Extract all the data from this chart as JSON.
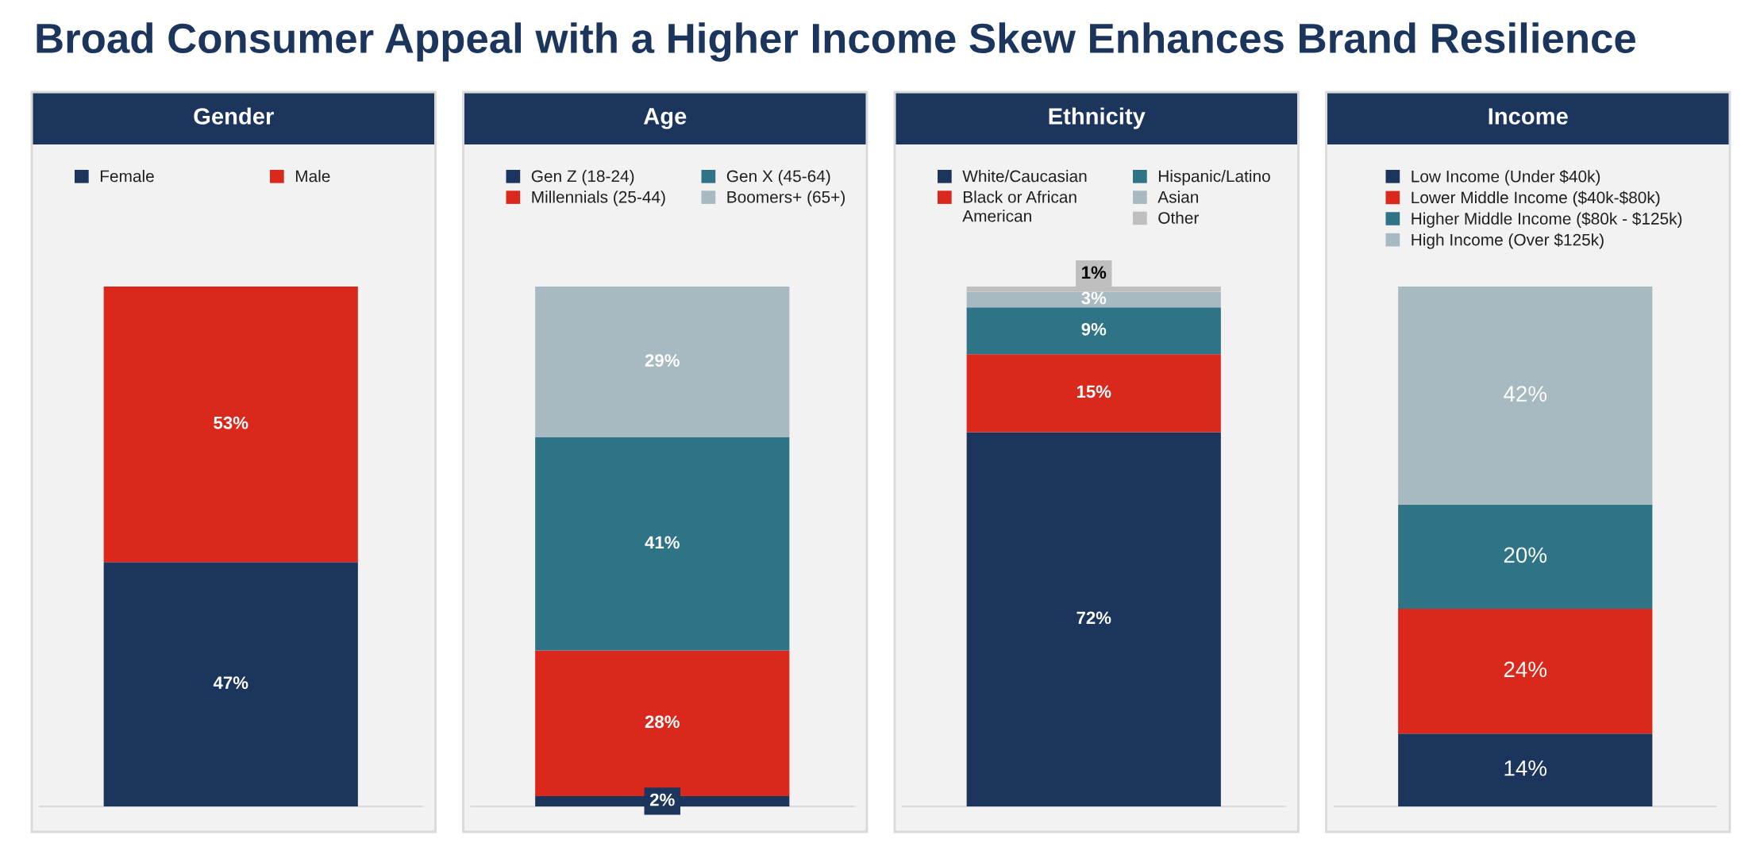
{
  "chart_data": [
    {
      "type": "bar",
      "title": "Gender",
      "annotations": [
        "Broad Consumer Appeal with a Higher Income Skew Enhances Brand Resilience"
      ],
      "categories": [
        null
      ],
      "stacked": true,
      "ylim": [
        0,
        100
      ],
      "tick_labels": false,
      "legend": "top",
      "series": [
        {
          "name": "Female",
          "color": "#1b355c",
          "values": [
            47
          ],
          "value_labels": [
            "47%"
          ]
        },
        {
          "name": "Male",
          "color": "#da291c",
          "values": [
            53
          ],
          "value_labels": [
            "53%"
          ]
        }
      ]
    },
    {
      "type": "bar",
      "title": "Age",
      "categories": [
        null
      ],
      "stacked": true,
      "ylim": [
        0,
        100
      ],
      "tick_labels": false,
      "legend": "top",
      "series": [
        {
          "name": "Gen Z (18-24)",
          "color": "#1b355c",
          "values": [
            2
          ],
          "value_labels": [
            "2%"
          ]
        },
        {
          "name": "Millennials (25-44)",
          "color": "#da291c",
          "values": [
            28
          ],
          "value_labels": [
            "28%"
          ]
        },
        {
          "name": "Gen X (45-64)",
          "color": "#2e7386",
          "values": [
            41
          ],
          "value_labels": [
            "41%"
          ]
        },
        {
          "name": "Boomers+ (65+)",
          "color": "#a7b9c1",
          "values": [
            29
          ],
          "value_labels": [
            "29%"
          ]
        }
      ]
    },
    {
      "type": "bar",
      "title": "Ethnicity",
      "categories": [
        null
      ],
      "stacked": true,
      "ylim": [
        0,
        100
      ],
      "tick_labels": false,
      "legend": "top",
      "series": [
        {
          "name": "White/Caucasian",
          "color": "#1b355c",
          "values": [
            72
          ],
          "value_labels": [
            "72%"
          ]
        },
        {
          "name": "Black or African American",
          "color": "#da291c",
          "values": [
            15
          ],
          "value_labels": [
            "15%"
          ]
        },
        {
          "name": "Hispanic/Latino",
          "color": "#2e7386",
          "values": [
            9
          ],
          "value_labels": [
            "9%"
          ]
        },
        {
          "name": "Asian",
          "color": "#a7b9c1",
          "values": [
            3
          ],
          "value_labels": [
            "3%"
          ]
        },
        {
          "name": "Other",
          "color": "#bfbfbf",
          "values": [
            1
          ],
          "value_labels": [
            "1%"
          ]
        }
      ]
    },
    {
      "type": "bar",
      "title": "Income",
      "categories": [
        null
      ],
      "stacked": true,
      "ylim": [
        0,
        100
      ],
      "tick_labels": false,
      "legend": "top",
      "series": [
        {
          "name": "Low Income (Under $40k)",
          "color": "#1b355c",
          "values": [
            14
          ],
          "value_labels": [
            "14%"
          ]
        },
        {
          "name": "Lower Middle Income ($40k-$80k)",
          "color": "#da291c",
          "values": [
            24
          ],
          "value_labels": [
            "24%"
          ]
        },
        {
          "name": "Higher Middle Income ($80k - $125k)",
          "color": "#2e7386",
          "values": [
            20
          ],
          "value_labels": [
            "20%"
          ]
        },
        {
          "name": "High Income (Over $125k)",
          "color": "#a7b9c1",
          "values": [
            42
          ],
          "value_labels": [
            "42%"
          ]
        }
      ]
    }
  ]
}
